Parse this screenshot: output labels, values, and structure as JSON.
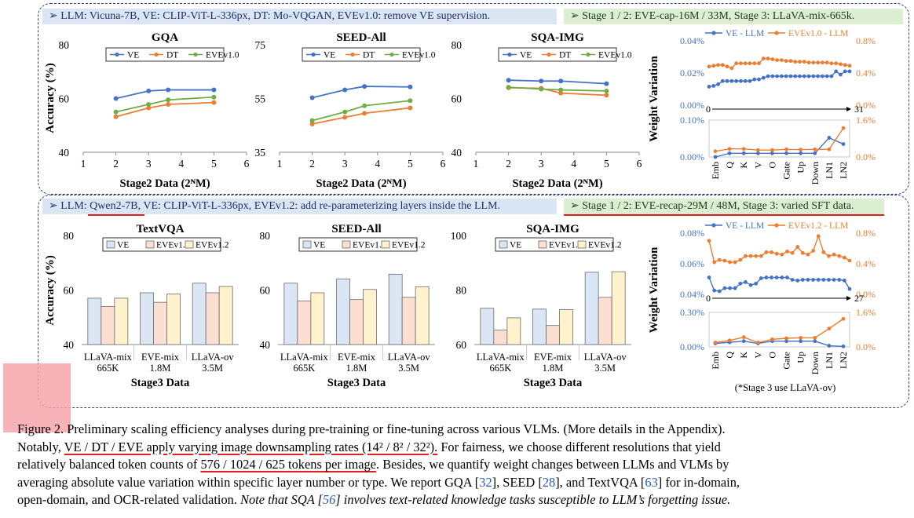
{
  "top": {
    "header_left": "➢ LLM: Vicuna-7B,     VE: CLIP-ViT-L-336px,     DT: Mo-VQGAN,     EVEv1.0: remove VE supervision.",
    "header_right": "➢ Stage 1 / 2: EVE-cap-16M / 33M,     Stage 3: LLaVA-mix-665k.",
    "ylabel": "Accuracy (%)",
    "xlabel": "Stage2 Data (2ᴺM)"
  },
  "bottom": {
    "header_left_prefix": "➢ LLM: ",
    "header_left_model": "Qwen2-7B",
    "header_left_rest": ",     VE: CLIP-ViT-L-336px,     EVEv1.2: add re-parameterizing layers inside the LLM.",
    "header_right_prefix": "➢ Stage 1 / 2: EVE-",
    "header_right_recap": "recap",
    "header_right_rest": "-29M / 48M,     Stage 3: varied SFT data.",
    "ylabel": "Accuracy (%)",
    "xlabel": "Stage3 Data",
    "footnote": "(*Stage 3 use LLaVA-ov)"
  },
  "chart_data": [
    {
      "type": "line",
      "title": "GQA",
      "xlabel": "Stage2 Data (2ᴺM)",
      "ylabel": "Accuracy (%)",
      "xlim": [
        1,
        6
      ],
      "ylim": [
        40,
        80
      ],
      "xticks": [
        1,
        2,
        3,
        4,
        5,
        6
      ],
      "yticks": [
        40,
        60,
        80
      ],
      "legend": "top",
      "series": [
        {
          "name": "VE",
          "color": "#4472c4",
          "x": [
            2,
            3,
            3.6,
            5
          ],
          "y": [
            60.0,
            62.8,
            63.2,
            63.2
          ]
        },
        {
          "name": "DT",
          "color": "#ed7d31",
          "x": [
            2,
            3,
            3.6,
            5
          ],
          "y": [
            53.2,
            56.5,
            57.8,
            58.5
          ]
        },
        {
          "name": "EVEv1.0",
          "color": "#70ad47",
          "x": [
            2,
            3,
            3.6,
            5
          ],
          "y": [
            55.0,
            57.8,
            59.5,
            60.5
          ]
        }
      ]
    },
    {
      "type": "line",
      "title": "SEED-All",
      "xlabel": "Stage2 Data (2ᴺM)",
      "xlim": [
        1,
        6
      ],
      "ylim": [
        35,
        75
      ],
      "xticks": [
        1,
        2,
        3,
        4,
        5,
        6
      ],
      "yticks": [
        35,
        55,
        75
      ],
      "legend": "top",
      "series": [
        {
          "name": "VE",
          "color": "#4472c4",
          "x": [
            2,
            3,
            3.6,
            5
          ],
          "y": [
            55.3,
            58.2,
            59.5,
            59.3
          ]
        },
        {
          "name": "DT",
          "color": "#ed7d31",
          "x": [
            2,
            3,
            3.6,
            5
          ],
          "y": [
            45.5,
            48.0,
            49.5,
            51.5
          ]
        },
        {
          "name": "EVEv1.0",
          "color": "#70ad47",
          "x": [
            2,
            3,
            3.6,
            5
          ],
          "y": [
            46.8,
            50.0,
            52.3,
            54.2
          ]
        }
      ]
    },
    {
      "type": "line",
      "title": "SQA-IMG",
      "xlabel": "Stage2 Data (2ᴺM)",
      "xlim": [
        1,
        6
      ],
      "ylim": [
        40,
        80
      ],
      "xticks": [
        1,
        2,
        3,
        4,
        5,
        6
      ],
      "yticks": [
        40,
        60,
        80
      ],
      "legend": "top",
      "series": [
        {
          "name": "VE",
          "color": "#4472c4",
          "x": [
            2,
            3,
            3.6,
            5
          ],
          "y": [
            66.8,
            66.5,
            66.5,
            65.5
          ]
        },
        {
          "name": "DT",
          "color": "#ed7d31",
          "x": [
            2,
            3,
            3.6,
            5
          ],
          "y": [
            64.0,
            63.8,
            62.0,
            61.2
          ]
        },
        {
          "name": "EVEv1.0",
          "color": "#70ad47",
          "x": [
            2,
            3,
            3.6,
            5
          ],
          "y": [
            64.2,
            63.5,
            63.2,
            62.8
          ]
        }
      ]
    },
    {
      "type": "line",
      "ylabel": "Weight Variation",
      "legend": "top",
      "layer_axis": {
        "start": "0",
        "end": "31"
      },
      "upper": {
        "ylim_left": [
          0,
          0.04
        ],
        "ylim_right": [
          0,
          0.8
        ],
        "yticks_left": [
          "0.00%",
          "0.02%",
          "0.04%"
        ],
        "yticks_right": [
          "0.0%",
          "0.4%",
          "0.8%"
        ],
        "series": [
          {
            "name": "VE - LLM",
            "color": "#4472c4",
            "axis": "left",
            "values": [
              0.0115,
              0.012,
              0.013,
              0.015,
              0.015,
              0.015,
              0.015,
              0.015,
              0.015,
              0.015,
              0.016,
              0.016,
              0.017,
              0.018,
              0.018,
              0.018,
              0.018,
              0.018,
              0.018,
              0.018,
              0.018,
              0.018,
              0.018,
              0.018,
              0.018,
              0.018,
              0.018,
              0.018,
              0.021,
              0.019,
              0.021,
              0.021
            ]
          },
          {
            "name": "EVEv1.0 - LLM",
            "color": "#ed7d31",
            "axis": "right",
            "values": [
              0.48,
              0.49,
              0.5,
              0.5,
              0.48,
              0.46,
              0.52,
              0.52,
              0.52,
              0.52,
              0.52,
              0.52,
              0.58,
              0.58,
              0.57,
              0.56,
              0.56,
              0.55,
              0.55,
              0.54,
              0.54,
              0.54,
              0.53,
              0.53,
              0.53,
              0.53,
              0.53,
              0.52,
              0.52,
              0.51,
              0.5,
              0.49
            ]
          }
        ]
      },
      "lower": {
        "categories": [
          "Emb",
          "Q",
          "K",
          "V",
          "O",
          "Gate",
          "Up",
          "Down",
          "LN1",
          "LN2"
        ],
        "ylim_left": [
          0,
          0.1
        ],
        "ylim_right": [
          0,
          1.6
        ],
        "yticks_left": [
          "0.00%",
          "0.10%"
        ],
        "yticks_right": [
          "0.0%",
          "1.6%"
        ],
        "series": [
          {
            "name": "VE - LLM",
            "color": "#4472c4",
            "axis": "left",
            "values": [
              0.0,
              0.01,
              0.01,
              0.01,
              0.01,
              0.01,
              0.01,
              0.01,
              0.052,
              0.035
            ]
          },
          {
            "name": "EVEv1.0 - LLM",
            "color": "#ed7d31",
            "axis": "right",
            "values": [
              0.25,
              0.35,
              0.35,
              0.3,
              0.3,
              0.33,
              0.32,
              0.33,
              0.33,
              1.25
            ]
          }
        ]
      }
    },
    {
      "type": "bar",
      "title": "TextVQA",
      "xlabel": "Stage3 Data",
      "ylabel": "Accuracy (%)",
      "categories": [
        "LLaVA-mix\n665K",
        "EVE-mix\n1.8M",
        "LLaVA-ov\n3.5M"
      ],
      "ylim": [
        40,
        80
      ],
      "yticks": [
        40,
        60,
        80
      ],
      "legend": "top",
      "series": [
        {
          "name": "VE",
          "color": "#dbe6f4",
          "values": [
            57.0,
            59.0,
            62.5
          ]
        },
        {
          "name": "EVEv1.0",
          "color": "#fbe0d2",
          "values": [
            54.0,
            55.5,
            59.0
          ]
        },
        {
          "name": "EVEv1.2",
          "color": "#fff2cc",
          "values": [
            57.0,
            58.5,
            61.3
          ]
        }
      ]
    },
    {
      "type": "bar",
      "title": "SEED-All",
      "xlabel": "Stage3 Data",
      "categories": [
        "LLaVA-mix\n665K",
        "EVE-mix\n1.8M",
        "LLaVA-ov\n3.5M"
      ],
      "ylim": [
        40,
        80
      ],
      "yticks": [
        40,
        60,
        80
      ],
      "legend": "top",
      "series": [
        {
          "name": "VE",
          "color": "#dbe6f4",
          "values": [
            62.5,
            64.0,
            65.8
          ]
        },
        {
          "name": "EVEv1.0",
          "color": "#fbe0d2",
          "values": [
            56.0,
            56.5,
            57.3
          ]
        },
        {
          "name": "EVEv1.2",
          "color": "#fff2cc",
          "values": [
            59.0,
            60.2,
            61.2
          ]
        }
      ]
    },
    {
      "type": "bar",
      "title": "SQA-IMG",
      "xlabel": "Stage3 Data",
      "categories": [
        "LLaVA-mix\n665K",
        "EVE-mix\n1.8M",
        "LLaVA-ov\n3.5M"
      ],
      "ylim": [
        60,
        100
      ],
      "yticks": [
        60,
        80,
        100
      ],
      "legend": "top",
      "series": [
        {
          "name": "VE",
          "color": "#dbe6f4",
          "values": [
            73.3,
            73.0,
            86.5
          ]
        },
        {
          "name": "EVEv1.0",
          "color": "#fbe0d2",
          "values": [
            65.3,
            67.0,
            77.3
          ]
        },
        {
          "name": "EVEv1.2",
          "color": "#fff2cc",
          "values": [
            69.8,
            72.8,
            86.7
          ]
        }
      ]
    },
    {
      "type": "line",
      "ylabel": "Weight Variation",
      "legend": "top",
      "layer_axis": {
        "start": "0",
        "end": "27"
      },
      "upper": {
        "ylim_left": [
          0.04,
          0.08
        ],
        "ylim_right": [
          0,
          0.8
        ],
        "yticks_left": [
          "0.04%",
          "0.06%",
          "0.08%"
        ],
        "yticks_right": [
          "0.0%",
          "0.4%",
          "0.8%"
        ],
        "series": [
          {
            "name": "VE - LLM",
            "color": "#4472c4",
            "axis": "left",
            "values": [
              0.051,
              0.0425,
              0.042,
              0.044,
              0.044,
              0.044,
              0.047,
              0.048,
              0.046,
              0.047,
              0.0505,
              0.051,
              0.051,
              0.051,
              0.051,
              0.051,
              0.0495,
              0.049,
              0.0495,
              0.0495,
              0.0495,
              0.0495,
              0.0495,
              0.0495,
              0.0495,
              0.0495,
              0.049,
              0.0435
            ]
          },
          {
            "name": "EVEv1.2 - LLM",
            "color": "#ed7d31",
            "axis": "right",
            "values": [
              0.7,
              0.42,
              0.45,
              0.44,
              0.42,
              0.42,
              0.45,
              0.5,
              0.5,
              0.5,
              0.5,
              0.55,
              0.55,
              0.53,
              0.52,
              0.56,
              0.54,
              0.62,
              0.54,
              0.52,
              0.57,
              0.76,
              0.55,
              0.5,
              0.52,
              0.5,
              0.48,
              0.44
            ]
          }
        ]
      },
      "lower": {
        "categories": [
          "Emb",
          "Q",
          "K",
          "V",
          "O",
          "Gate",
          "Up",
          "Down",
          "LN1",
          "LN2"
        ],
        "ylim_left": [
          0,
          0.3
        ],
        "ylim_right": [
          0,
          1.6
        ],
        "yticks_left": [
          "0.00%",
          "0.30%"
        ],
        "yticks_right": [
          "0.0%",
          "1.6%"
        ],
        "series": [
          {
            "name": "VE - LLM",
            "color": "#4472c4",
            "axis": "left",
            "values": [
              0.03,
              0.04,
              0.05,
              0.03,
              0.05,
              0.05,
              0.05,
              0.05,
              0.01,
              0.005
            ]
          },
          {
            "name": "EVEv1.2 - LLM",
            "color": "#ed7d31",
            "axis": "right",
            "values": [
              0.2,
              0.3,
              0.45,
              0.2,
              0.35,
              0.4,
              0.42,
              0.42,
              0.85,
              1.3
            ]
          }
        ]
      }
    }
  ],
  "caption": {
    "l1": "Figure 2. Preliminary scaling efficiency analyses during pre-training or fine-tuning across various VLMs. (More details in the Appendix).",
    "l2_a": "Notably, ",
    "l2_u": "VE / DT / EVE apply varying image downsampling rates (14² / 8² / 32²).",
    "l2_b": " For fairness, we choose different resolutions that yield",
    "l3_a": "relatively balanced token counts of ",
    "l3_u": "576 / 1024 / 625 tokens per image",
    "l3_b": ". Besides, we quantify weight changes between LLMs and VLMs by",
    "l4": "averaging absolute value variation within specific layer number or type. We report GQA [",
    "r32": "32",
    "l4_b": "], SEED [",
    "r28": "28",
    "l4_c": "], and TextVQA [",
    "r63": "63",
    "l4_d": "] for in-domain,",
    "l5_a": "open-domain, and OCR-related validation. ",
    "l5_i": "Note that SQA [",
    "r56": "56",
    "l5_j": "] involves text-related knowledge tasks susceptible to LLM’s forgetting issue."
  }
}
